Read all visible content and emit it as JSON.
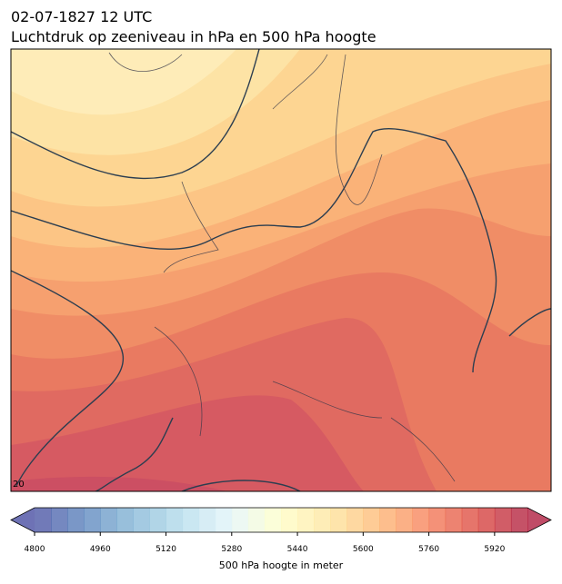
{
  "header": {
    "title_line1": "02-07-1827 12 UTC",
    "title_line2": "Luchtdruk op zeeniveau in hPa en 500 hPa hoogte"
  },
  "map": {
    "contour_labels": [
      "20"
    ]
  },
  "colorbar": {
    "label": "500 hPa hoogte in meter",
    "min": 4800,
    "max": 6000,
    "step": 40,
    "ticks": [
      4800,
      4960,
      5120,
      5280,
      5440,
      5600,
      5760,
      5920
    ]
  }
}
